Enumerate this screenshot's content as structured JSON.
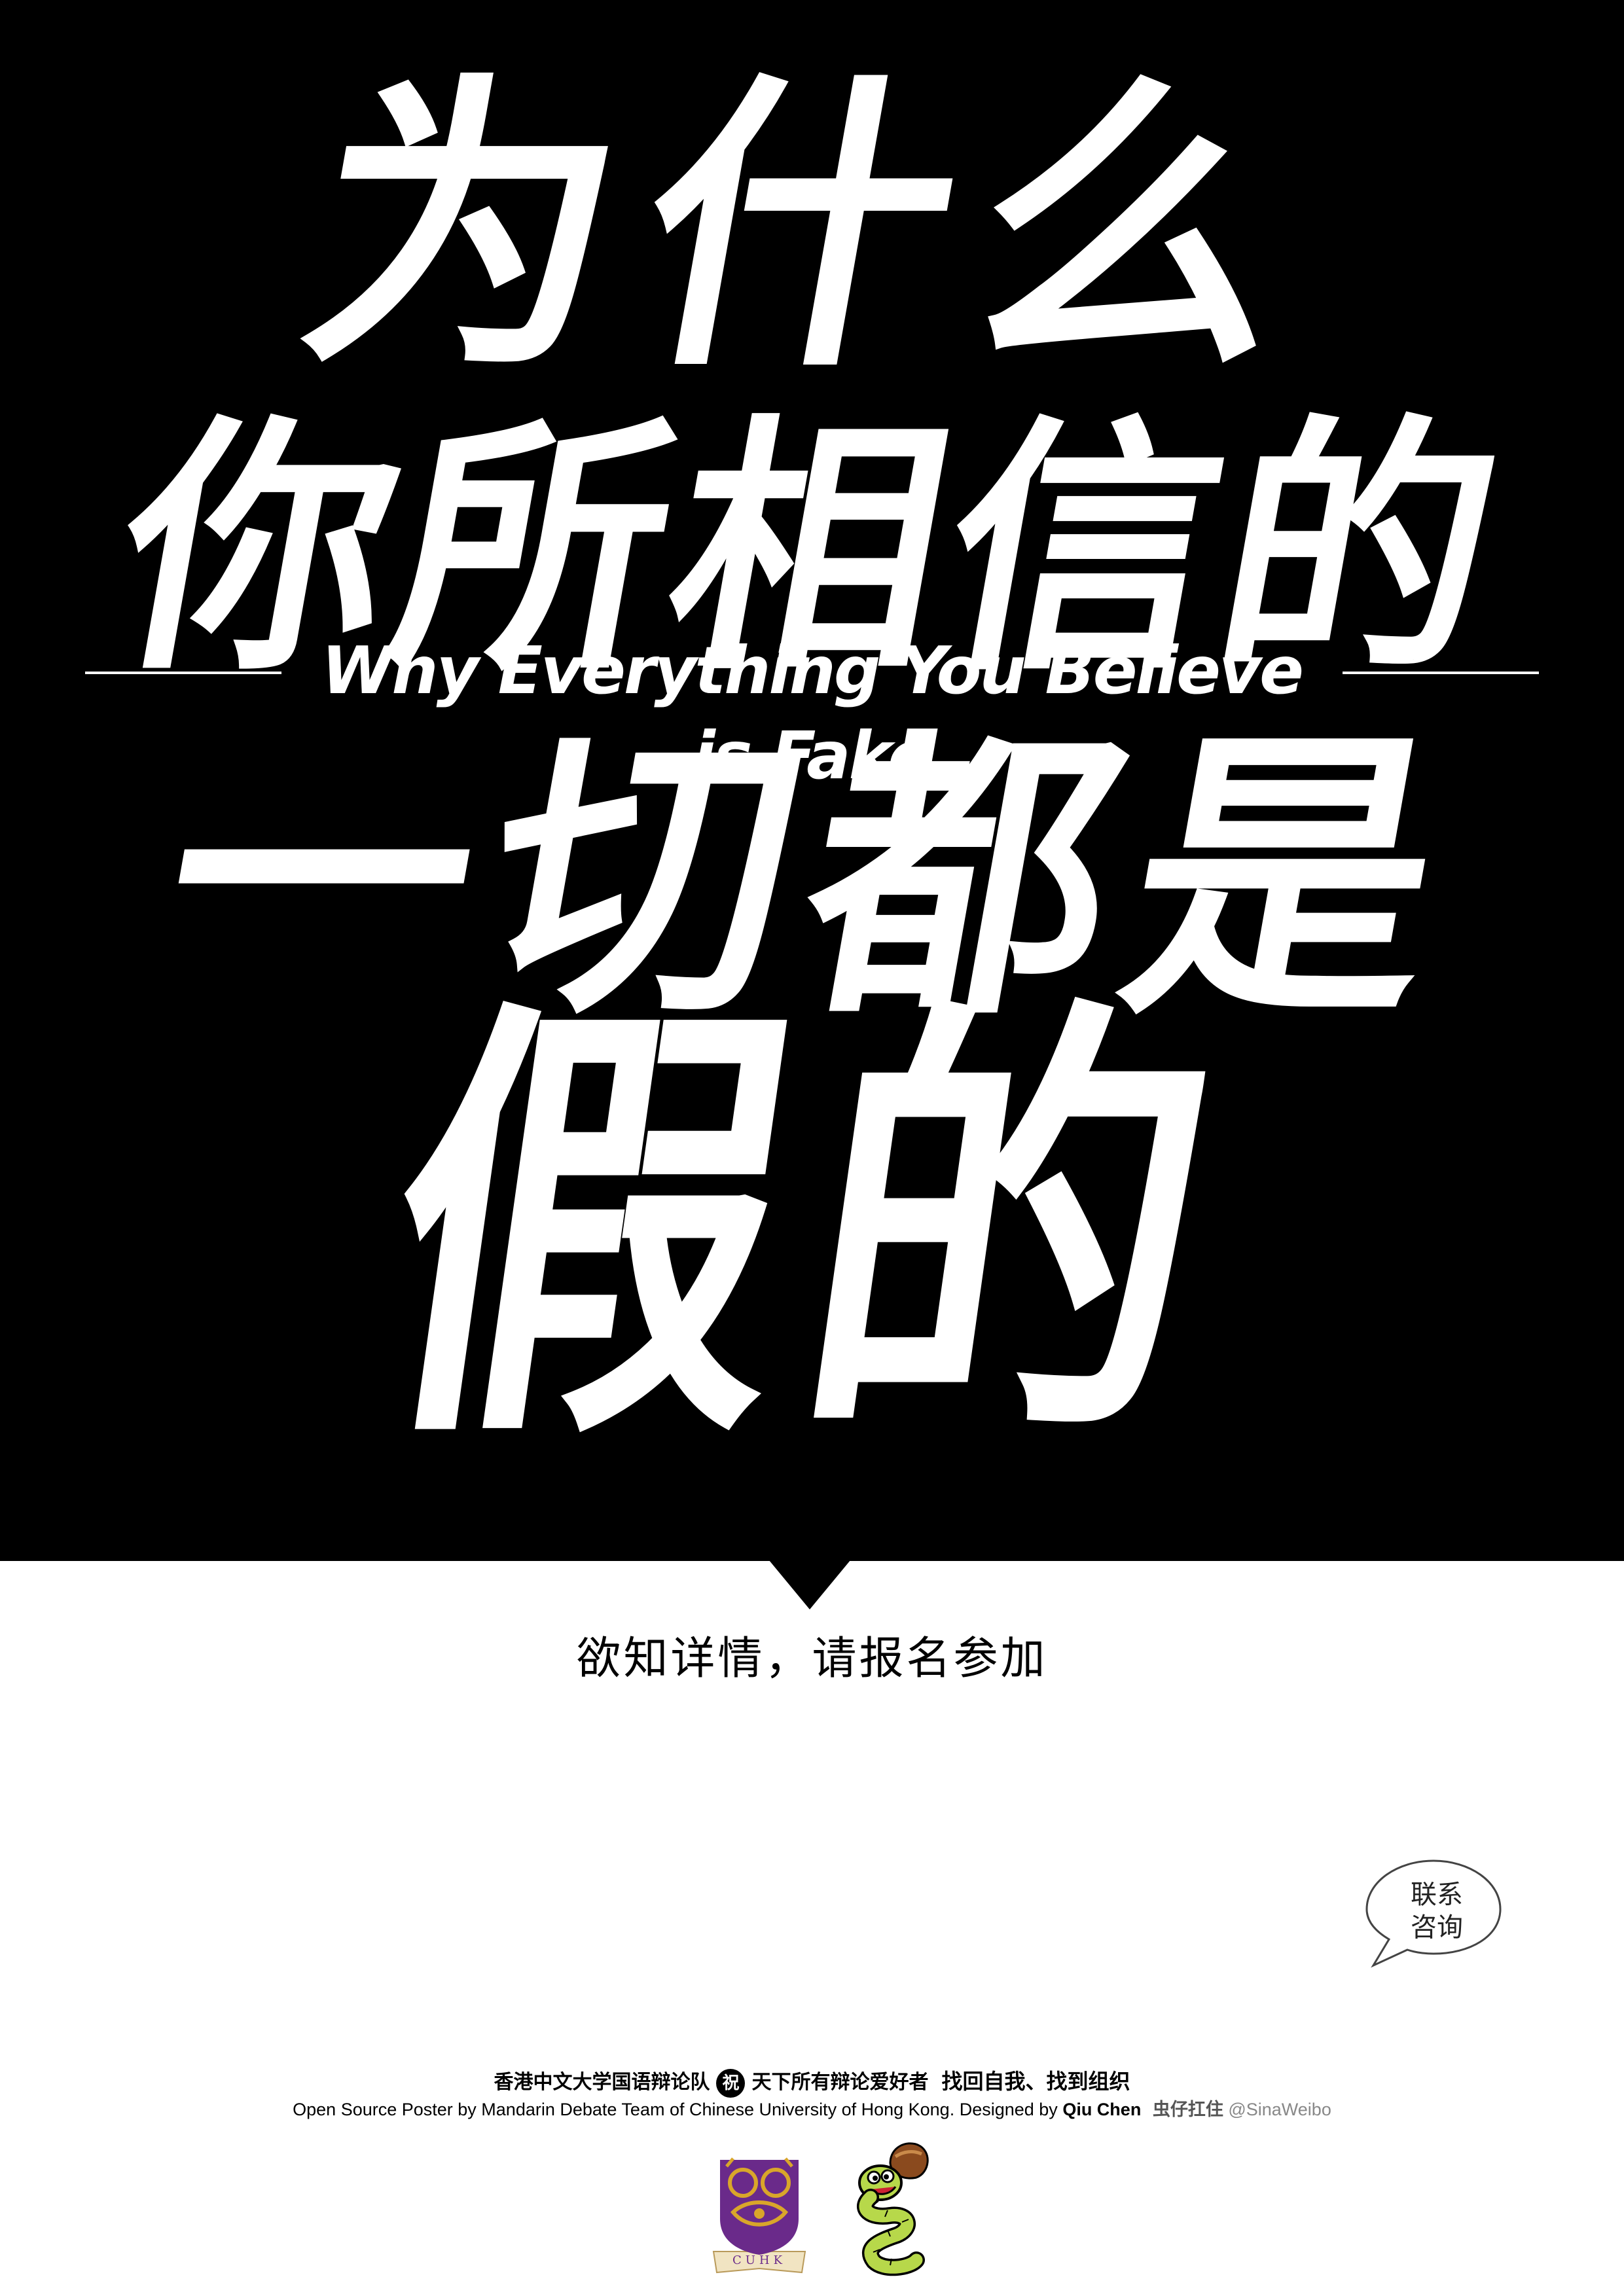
{
  "headline": {
    "line1": "为什么",
    "line2": "你所相信的",
    "subtitle": "Why Everything You Believe is Fake",
    "line3": "一切都是",
    "line4": "假的"
  },
  "cta": "欲知详情，请报名参加",
  "contact": {
    "line1": "联系",
    "line2": "咨询"
  },
  "footer": {
    "team_cn": "香港中文大学国语辩论队",
    "badge": "祝",
    "wish": "天下所有辩论爱好者",
    "slogan": "找回自我、找到组织",
    "credit_prefix": "Open Source Poster by Mandarin Debate Team of Chinese University of Hong Kong. Designed by",
    "designer": "Qiu Chen",
    "weibo_name": "虫仔扛住",
    "weibo_handle": "@SinaWeibo"
  },
  "logos": {
    "university_letters": "CUHK"
  },
  "colors": {
    "panel": "#000000",
    "headline_text": "#ffffff",
    "page": "#ffffff",
    "seal_purple": "#6a2a8a",
    "seal_gold": "#d9a62a",
    "mascot_green": "#b7d84a",
    "mascot_brown": "#8a4a1e"
  }
}
